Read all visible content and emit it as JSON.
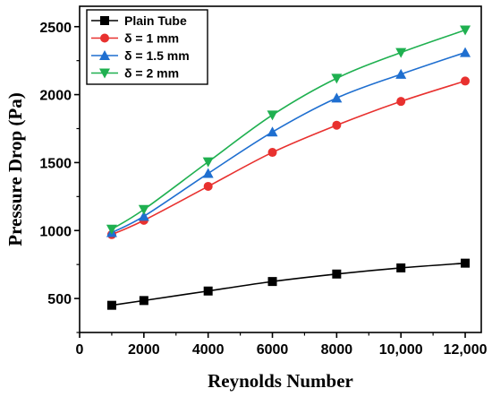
{
  "chart_data": {
    "type": "line",
    "xlabel": "Reynolds Number",
    "ylabel": "Pressure Drop (Pa)",
    "xlim": [
      0,
      12500
    ],
    "ylim": [
      250,
      2650
    ],
    "x_ticks": [
      0,
      2000,
      4000,
      6000,
      8000,
      10000,
      12000
    ],
    "x_tick_labels": [
      "0",
      "2000",
      "4000",
      "6000",
      "8000",
      "10,000",
      "12,000"
    ],
    "y_ticks": [
      500,
      1000,
      1500,
      2000,
      2500
    ],
    "y_tick_labels": [
      "500",
      "1000",
      "1500",
      "2000",
      "2500"
    ],
    "grid": false,
    "legend_position": "top-left",
    "x": [
      1000,
      2000,
      4000,
      6000,
      8000,
      10000,
      12000
    ],
    "series": [
      {
        "name": "Plain Tube",
        "values": [
          450,
          485,
          555,
          625,
          680,
          725,
          760
        ],
        "color": "#000000",
        "marker": "square"
      },
      {
        "name": "δ = 1 mm",
        "values": [
          970,
          1075,
          1325,
          1575,
          1775,
          1950,
          2100
        ],
        "color": "#e8312f",
        "marker": "circle"
      },
      {
        "name": "δ = 1.5 mm",
        "values": [
          985,
          1105,
          1420,
          1725,
          1975,
          2150,
          2310
        ],
        "color": "#1f6fd0",
        "marker": "triangle-up"
      },
      {
        "name": "δ = 2 mm",
        "values": [
          1010,
          1155,
          1505,
          1850,
          2120,
          2310,
          2475
        ],
        "color": "#1fb050",
        "marker": "triangle-down"
      }
    ]
  }
}
